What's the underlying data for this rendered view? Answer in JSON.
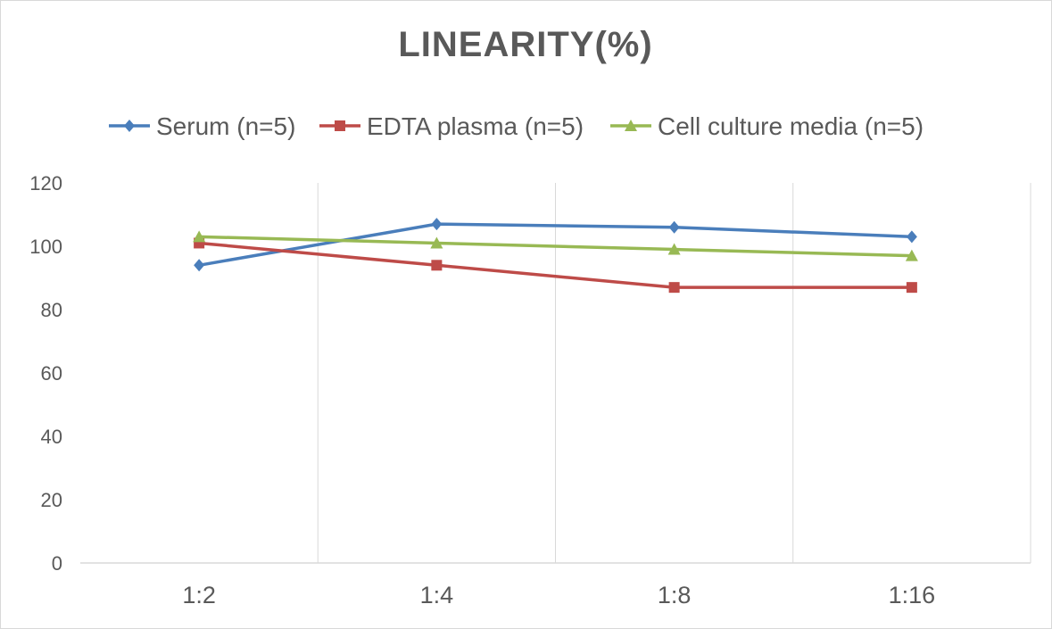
{
  "chart_data": {
    "type": "line",
    "title": "LINEARITY(%)",
    "xlabel": "",
    "ylabel": "",
    "categories": [
      "1:2",
      "1:4",
      "1:8",
      "1:16"
    ],
    "ylim": [
      0,
      120
    ],
    "yticks": [
      0,
      20,
      40,
      60,
      80,
      100,
      120
    ],
    "ytick_labels": [
      "0",
      "20",
      "40",
      "60",
      "80",
      "100",
      "120"
    ],
    "grid": "vertical",
    "legend": "top",
    "series": [
      {
        "name": "Serum (n=5)",
        "values": [
          94,
          107,
          106,
          103
        ],
        "color": "#4a7ebb",
        "marker": "diamond"
      },
      {
        "name": "EDTA plasma (n=5)",
        "values": [
          101,
          94,
          87,
          87
        ],
        "color": "#be4b48",
        "marker": "square"
      },
      {
        "name": "Cell culture media (n=5)",
        "values": [
          103,
          101,
          99,
          97
        ],
        "color": "#98b954",
        "marker": "triangle"
      }
    ]
  }
}
